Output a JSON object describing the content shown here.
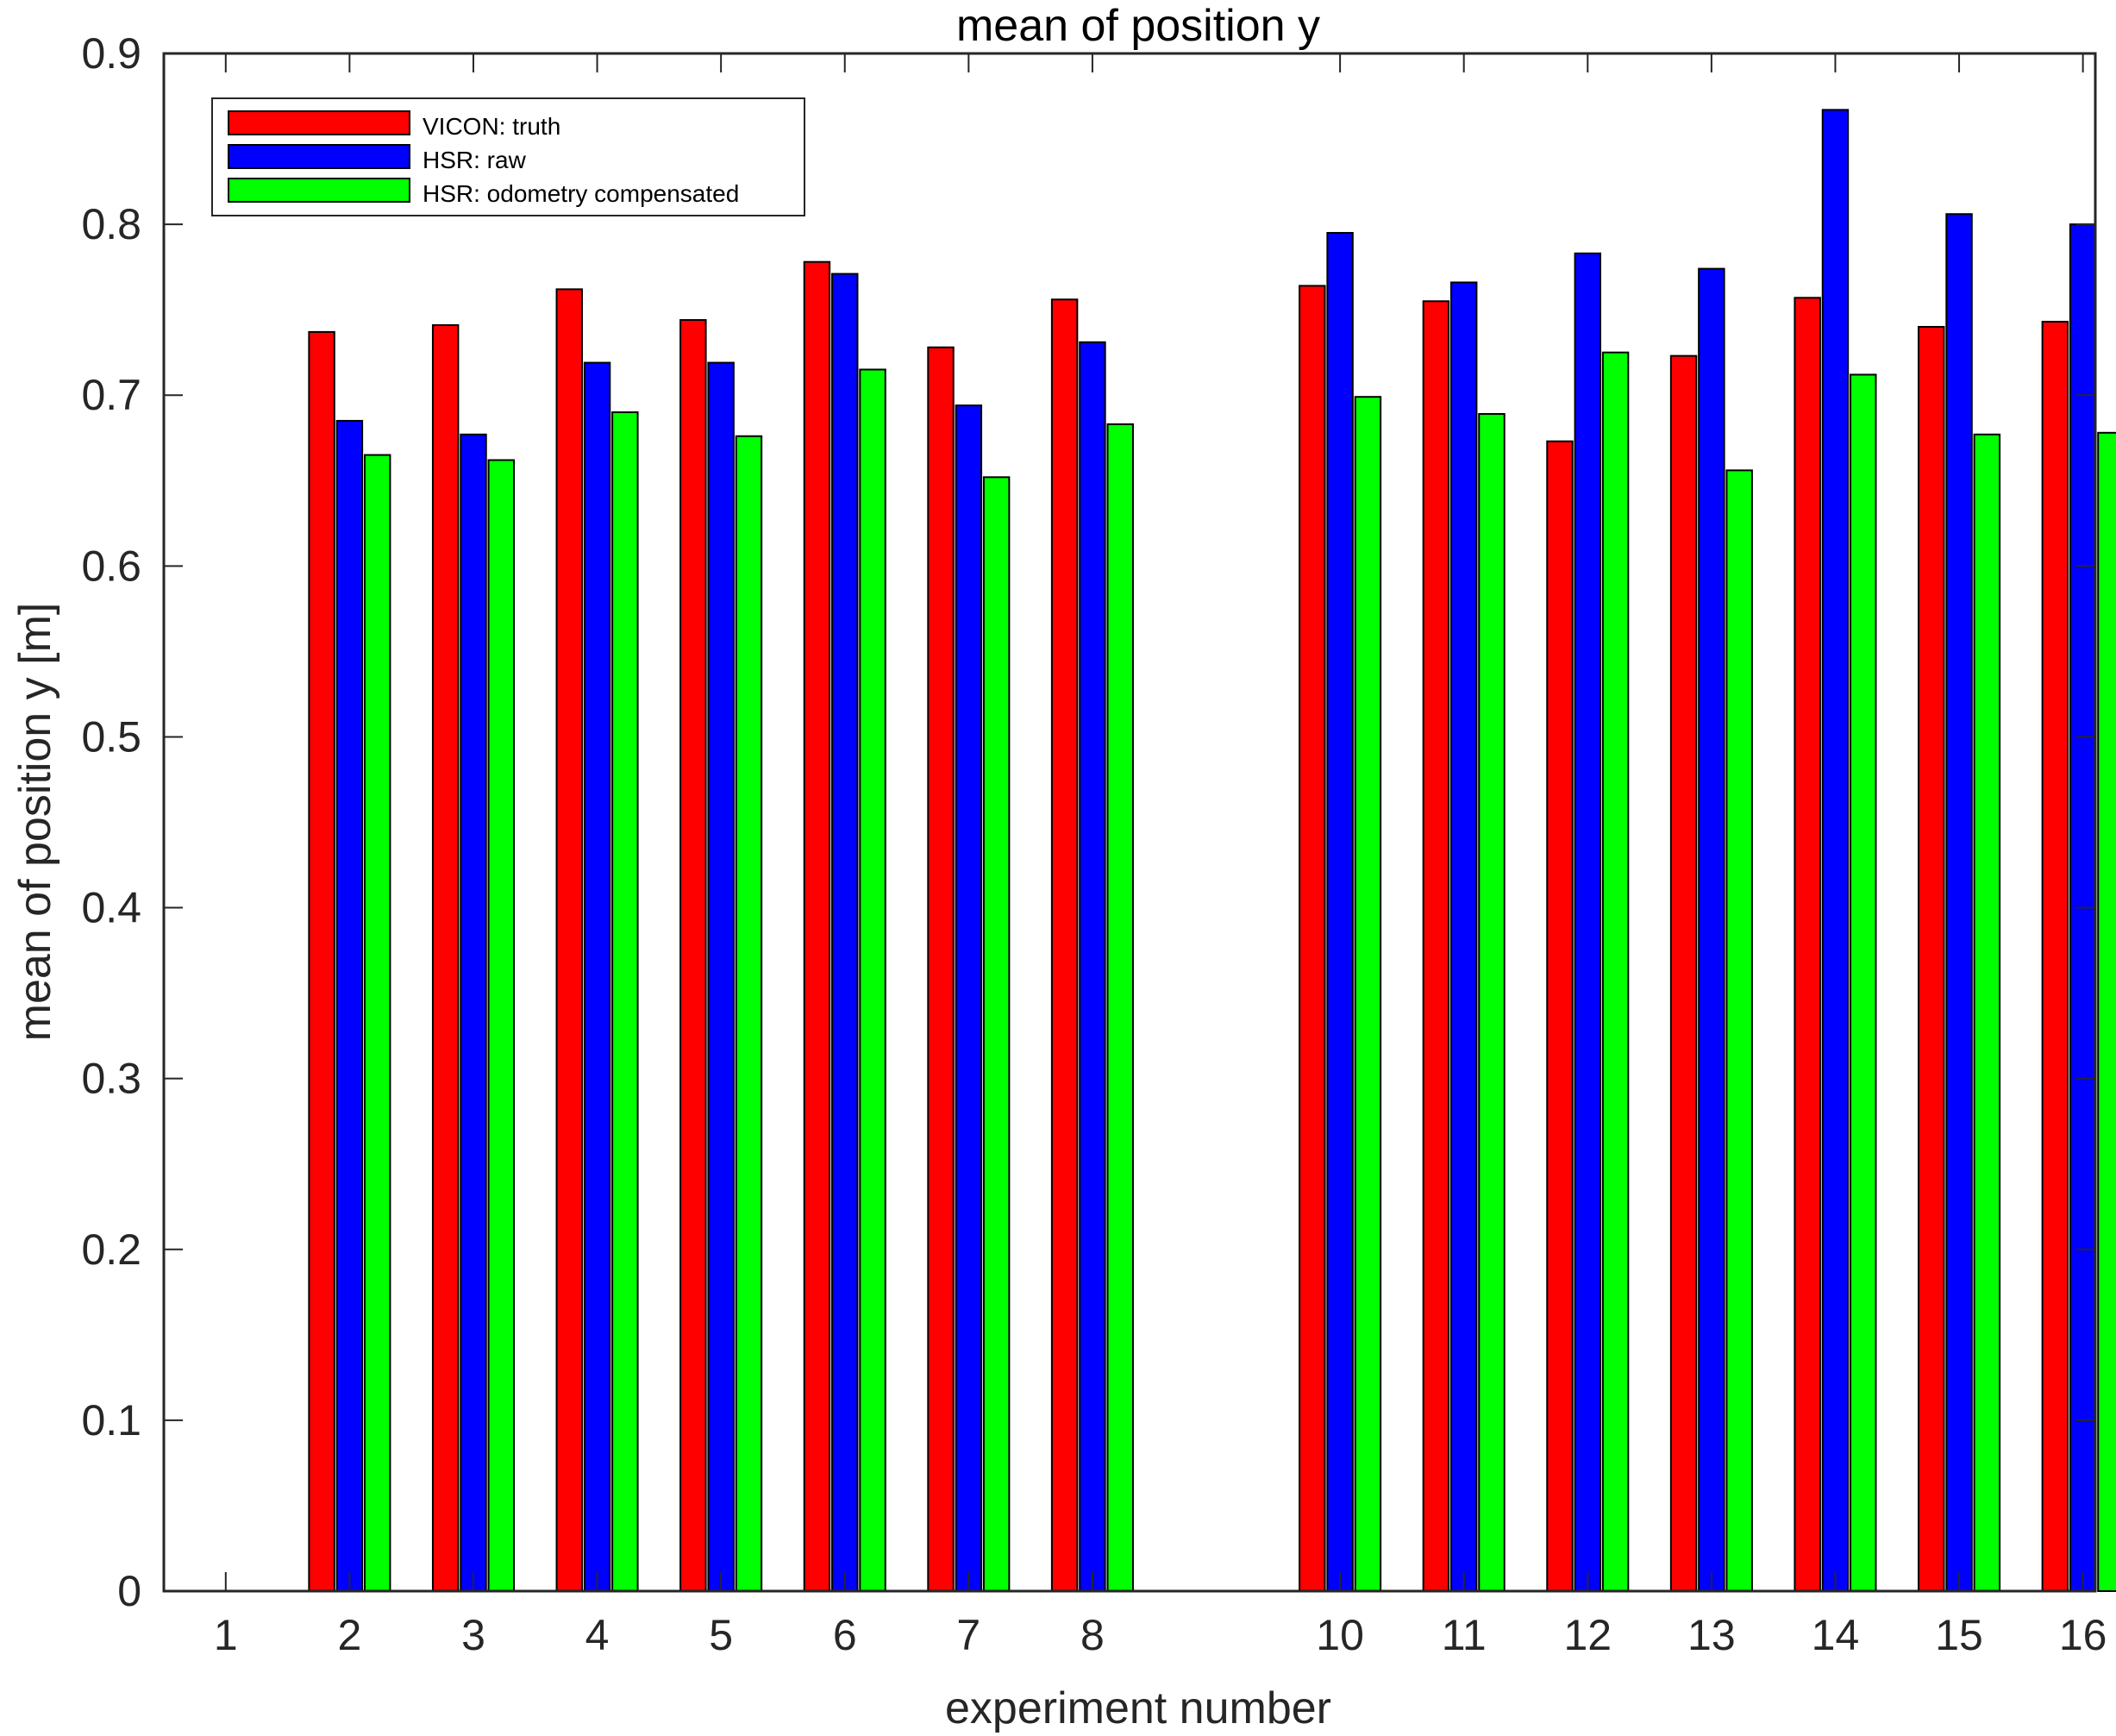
{
  "chart_data": {
    "type": "bar",
    "title": "mean of position y",
    "xlabel": "experiment number",
    "ylabel": "mean of position y [m]",
    "ylim": [
      0,
      0.9
    ],
    "yticks": [
      0,
      0.1,
      0.2,
      0.3,
      0.4,
      0.5,
      0.6,
      0.7,
      0.8,
      0.9
    ],
    "xlim": [
      0.5,
      16.1
    ],
    "categories": [
      "1",
      "2",
      "3",
      "4",
      "5",
      "6",
      "7",
      "8",
      "10",
      "11",
      "12",
      "13",
      "14",
      "15",
      "16"
    ],
    "x": [
      1,
      2,
      3,
      4,
      5,
      6,
      7,
      8,
      10,
      11,
      12,
      13,
      14,
      15,
      16
    ],
    "series": [
      {
        "name": "VICON: truth",
        "color": "#ff0000",
        "values": [
          0,
          0.737,
          0.741,
          0.762,
          0.744,
          0.778,
          0.728,
          0.756,
          0.764,
          0.755,
          0.673,
          0.723,
          0.757,
          0.74,
          0.743
        ]
      },
      {
        "name": "HSR: raw",
        "color": "#0000ff",
        "values": [
          0,
          0.685,
          0.677,
          0.719,
          0.719,
          0.771,
          0.694,
          0.731,
          0.795,
          0.766,
          0.783,
          0.774,
          0.867,
          0.806,
          0.8
        ]
      },
      {
        "name": "HSR: odometry compensated",
        "color": "#00ff00",
        "values": [
          0,
          0.665,
          0.662,
          0.69,
          0.676,
          0.715,
          0.652,
          0.683,
          0.699,
          0.689,
          0.725,
          0.656,
          0.712,
          0.677,
          0.678
        ]
      }
    ],
    "grid": false,
    "legend": "top-left"
  }
}
